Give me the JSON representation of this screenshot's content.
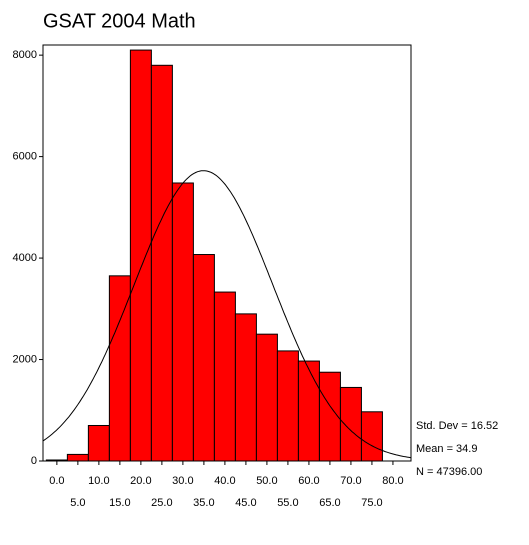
{
  "chart_data": {
    "type": "histogram",
    "title": "GSAT 2004 Math",
    "bins": [
      -2.5,
      2.5,
      7.5,
      12.5,
      17.5,
      22.5,
      27.5,
      32.5,
      37.5,
      42.5,
      47.5,
      52.5,
      57.5,
      62.5,
      67.5,
      72.5,
      77.5
    ],
    "values": [
      20,
      130,
      700,
      3650,
      8100,
      7800,
      5480,
      4070,
      3330,
      2900,
      2500,
      2170,
      1970,
      1750,
      1450,
      970
    ],
    "color": "#ff0000",
    "xlim": [
      -3.3,
      84.3
    ],
    "xticks": [
      {
        "value": 0,
        "label": "0.0"
      },
      {
        "value": 5,
        "label": "5.0"
      },
      {
        "value": 10,
        "label": "10.0"
      },
      {
        "value": 15,
        "label": "15.0"
      },
      {
        "value": 20,
        "label": "20.0"
      },
      {
        "value": 25,
        "label": "25.0"
      },
      {
        "value": 30,
        "label": "30.0"
      },
      {
        "value": 35,
        "label": "35.0"
      },
      {
        "value": 40,
        "label": "40.0"
      },
      {
        "value": 45,
        "label": "45.0"
      },
      {
        "value": 50,
        "label": "50.0"
      },
      {
        "value": 55,
        "label": "55.0"
      },
      {
        "value": 60,
        "label": "60.0"
      },
      {
        "value": 65,
        "label": "65.0"
      },
      {
        "value": 70,
        "label": "70.0"
      },
      {
        "value": 75,
        "label": "75.0"
      },
      {
        "value": 80,
        "label": "80.0"
      }
    ],
    "ylim": [
      0,
      8200
    ],
    "yticks": [
      0,
      2000,
      4000,
      6000,
      8000
    ],
    "curve": {
      "std": 16.52,
      "mean": 34.9,
      "n": 47396
    },
    "annotations": [
      "Std. Dev = 16.52",
      "Mean = 34.9",
      "N = 47396.00"
    ]
  }
}
